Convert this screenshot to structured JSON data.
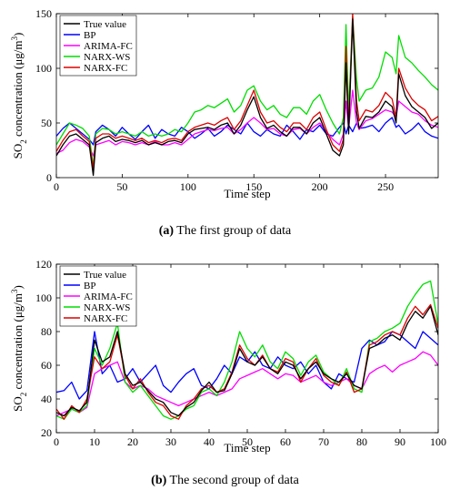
{
  "chart_data": [
    {
      "type": "line",
      "xlabel": "Time step",
      "ylabel_main": "SO",
      "ylabel_sub": "2",
      "ylabel_rest": " concentration (μg/m",
      "ylabel_sup": "3",
      "ylabel_end": ")",
      "xlim": [
        0,
        290
      ],
      "ylim": [
        0,
        150
      ],
      "xticks": [
        0,
        50,
        100,
        150,
        200,
        250
      ],
      "yticks": [
        0,
        50,
        100,
        150
      ],
      "legend_position": "top-left",
      "caption_letter": "(a)",
      "caption_text": " The first group of data",
      "x": [
        0,
        5,
        10,
        15,
        20,
        25,
        28,
        30,
        35,
        40,
        45,
        50,
        55,
        60,
        65,
        70,
        75,
        80,
        85,
        90,
        95,
        100,
        105,
        110,
        115,
        120,
        125,
        130,
        135,
        140,
        145,
        150,
        155,
        160,
        165,
        170,
        175,
        180,
        185,
        190,
        195,
        200,
        205,
        210,
        215,
        218,
        220,
        222,
        225,
        228,
        230,
        235,
        240,
        245,
        250,
        255,
        258,
        260,
        265,
        270,
        275,
        280,
        285,
        290
      ],
      "series": [
        {
          "name": "True value",
          "color": "#000000",
          "values": [
            20,
            30,
            38,
            40,
            35,
            30,
            2,
            32,
            36,
            38,
            33,
            35,
            34,
            32,
            34,
            30,
            32,
            30,
            33,
            34,
            32,
            40,
            44,
            45,
            46,
            44,
            48,
            50,
            40,
            48,
            62,
            74,
            55,
            45,
            48,
            42,
            38,
            46,
            46,
            40,
            50,
            55,
            40,
            25,
            20,
            30,
            105,
            40,
            145,
            60,
            45,
            56,
            55,
            60,
            70,
            65,
            50,
            95,
            75,
            65,
            60,
            55,
            45,
            50
          ]
        },
        {
          "name": "BP",
          "color": "#0000ff",
          "values": [
            38,
            45,
            50,
            45,
            40,
            35,
            30,
            42,
            48,
            44,
            38,
            46,
            40,
            35,
            42,
            48,
            36,
            44,
            40,
            38,
            46,
            42,
            36,
            40,
            45,
            38,
            42,
            48,
            44,
            40,
            50,
            42,
            38,
            44,
            40,
            38,
            48,
            42,
            35,
            44,
            42,
            48,
            40,
            38,
            46,
            50,
            40,
            48,
            42,
            50,
            45,
            46,
            48,
            42,
            50,
            55,
            46,
            48,
            40,
            44,
            50,
            42,
            38,
            36
          ]
        },
        {
          "name": "ARIMA-FC",
          "color": "#ff00ff",
          "values": [
            22,
            25,
            32,
            35,
            33,
            28,
            20,
            30,
            32,
            34,
            30,
            33,
            32,
            30,
            32,
            30,
            33,
            30,
            30,
            32,
            30,
            35,
            40,
            42,
            44,
            43,
            45,
            46,
            40,
            44,
            50,
            55,
            50,
            44,
            45,
            40,
            38,
            44,
            45,
            40,
            46,
            50,
            42,
            35,
            30,
            40,
            70,
            45,
            80,
            50,
            44,
            52,
            54,
            58,
            62,
            60,
            55,
            70,
            65,
            60,
            58,
            52,
            48,
            46
          ]
        },
        {
          "name": "NARX-WS",
          "color": "#00dd00",
          "values": [
            30,
            40,
            50,
            48,
            45,
            38,
            10,
            40,
            45,
            44,
            40,
            42,
            40,
            38,
            42,
            38,
            40,
            38,
            40,
            44,
            42,
            50,
            60,
            62,
            66,
            64,
            68,
            72,
            60,
            66,
            80,
            84,
            70,
            62,
            66,
            58,
            55,
            64,
            64,
            58,
            70,
            76,
            62,
            50,
            40,
            55,
            140,
            60,
            148,
            90,
            70,
            80,
            82,
            92,
            115,
            110,
            95,
            130,
            110,
            105,
            98,
            92,
            85,
            80
          ]
        },
        {
          "name": "NARX-FC",
          "color": "#dd0000",
          "values": [
            24,
            34,
            42,
            44,
            38,
            33,
            8,
            36,
            40,
            40,
            36,
            38,
            36,
            34,
            36,
            32,
            34,
            32,
            35,
            36,
            34,
            42,
            46,
            48,
            50,
            48,
            52,
            55,
            44,
            52,
            66,
            80,
            60,
            50,
            52,
            46,
            42,
            50,
            50,
            44,
            55,
            60,
            44,
            30,
            24,
            35,
            120,
            45,
            150,
            70,
            52,
            62,
            60,
            66,
            78,
            72,
            55,
            100,
            82,
            72,
            66,
            62,
            52,
            56
          ]
        }
      ]
    },
    {
      "type": "line",
      "xlabel": "Time step",
      "ylabel_main": "SO",
      "ylabel_sub": "2",
      "ylabel_rest": " concentration (μg/m",
      "ylabel_sup": "3",
      "ylabel_end": ")",
      "xlim": [
        0,
        100
      ],
      "ylim": [
        20,
        120
      ],
      "xticks": [
        0,
        10,
        20,
        30,
        40,
        50,
        60,
        70,
        80,
        90,
        100
      ],
      "yticks": [
        20,
        40,
        60,
        80,
        100,
        120
      ],
      "legend_position": "top-left",
      "caption_letter": "(b)",
      "caption_text": " The second group of data",
      "x": [
        0,
        2,
        4,
        6,
        8,
        10,
        12,
        14,
        16,
        18,
        20,
        22,
        24,
        26,
        28,
        30,
        32,
        34,
        36,
        38,
        40,
        42,
        44,
        46,
        48,
        50,
        52,
        54,
        56,
        58,
        60,
        62,
        64,
        66,
        68,
        70,
        72,
        74,
        76,
        78,
        80,
        82,
        84,
        86,
        88,
        90,
        92,
        94,
        96,
        98,
        100
      ],
      "series": [
        {
          "name": "True value",
          "color": "#000000",
          "values": [
            32,
            30,
            35,
            33,
            38,
            75,
            62,
            65,
            80,
            55,
            48,
            50,
            45,
            40,
            38,
            32,
            30,
            35,
            38,
            45,
            50,
            44,
            45,
            55,
            70,
            62,
            60,
            65,
            58,
            55,
            62,
            60,
            52,
            58,
            62,
            55,
            52,
            50,
            55,
            48,
            46,
            70,
            72,
            76,
            78,
            75,
            85,
            92,
            88,
            95,
            78
          ]
        },
        {
          "name": "BP",
          "color": "#0000ff",
          "values": [
            44,
            45,
            50,
            40,
            45,
            80,
            55,
            60,
            50,
            52,
            58,
            50,
            55,
            60,
            48,
            44,
            50,
            55,
            58,
            48,
            46,
            52,
            60,
            55,
            65,
            62,
            68,
            60,
            58,
            65,
            60,
            58,
            62,
            55,
            60,
            50,
            46,
            55,
            52,
            50,
            70,
            75,
            72,
            74,
            80,
            78,
            74,
            70,
            80,
            76,
            72
          ]
        },
        {
          "name": "ARIMA-FC",
          "color": "#ff00ff",
          "values": [
            30,
            32,
            34,
            32,
            35,
            55,
            58,
            60,
            62,
            50,
            46,
            48,
            46,
            42,
            40,
            38,
            36,
            38,
            40,
            42,
            44,
            42,
            44,
            46,
            52,
            54,
            56,
            58,
            55,
            52,
            55,
            54,
            50,
            52,
            54,
            50,
            48,
            50,
            52,
            48,
            46,
            55,
            58,
            60,
            56,
            60,
            62,
            64,
            68,
            66,
            60
          ]
        },
        {
          "name": "NARX-WS",
          "color": "#00dd00",
          "values": [
            30,
            28,
            34,
            32,
            36,
            70,
            60,
            70,
            85,
            50,
            44,
            48,
            42,
            36,
            30,
            28,
            30,
            34,
            36,
            44,
            46,
            42,
            50,
            62,
            80,
            70,
            65,
            72,
            62,
            58,
            68,
            64,
            54,
            62,
            66,
            56,
            52,
            48,
            58,
            46,
            44,
            74,
            76,
            80,
            82,
            85,
            95,
            102,
            108,
            110,
            84
          ]
        },
        {
          "name": "NARX-FC",
          "color": "#dd0000",
          "values": [
            34,
            28,
            36,
            32,
            40,
            65,
            58,
            62,
            78,
            54,
            46,
            52,
            44,
            38,
            36,
            30,
            28,
            36,
            40,
            46,
            48,
            44,
            46,
            56,
            72,
            64,
            60,
            66,
            58,
            56,
            64,
            62,
            50,
            58,
            64,
            54,
            50,
            48,
            56,
            44,
            46,
            72,
            74,
            78,
            80,
            78,
            88,
            95,
            90,
            96,
            82
          ]
        }
      ]
    }
  ]
}
